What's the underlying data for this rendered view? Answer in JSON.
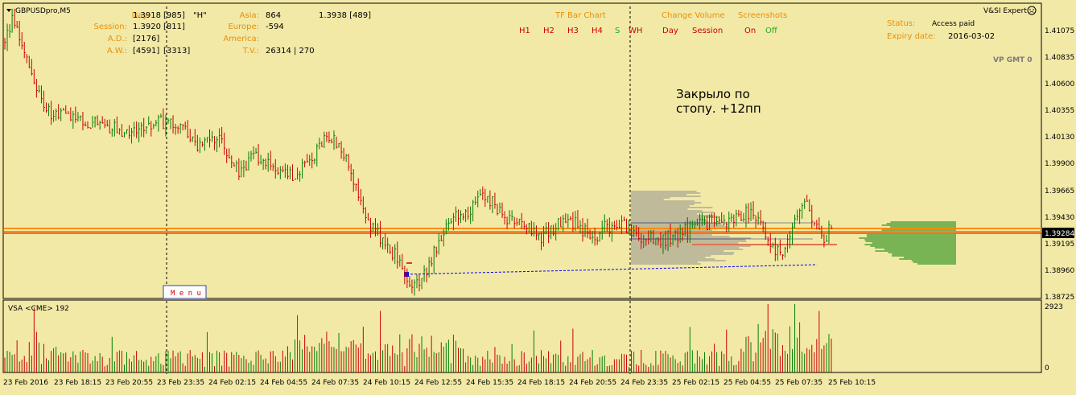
{
  "symbol": "GBPUSDpro,M5",
  "menu_label": "M e n u",
  "annotation": {
    "line1": "Закрыло по",
    "line2": "стопу.  +12пп"
  },
  "expert": {
    "label": "V&SI Expert",
    "vp_label": "VP GMT 0"
  },
  "status": {
    "status_label": "Status:",
    "status_value": "Access paid",
    "expiry_label": "Expiry date:",
    "expiry_value": "2016-03-02"
  },
  "info_panel": {
    "day_label": "Day:",
    "day_value": "1.3918",
    "day_volume": "[985]",
    "day_flag": "\"H\"",
    "session_label": "Session:",
    "session_value": "1.3920",
    "session_volume": "[811]",
    "ad_label": "A.D.:",
    "ad_value": "[2176]",
    "aw_label": "A.W.:",
    "aw_value": "[4591]",
    "aw_value2": "[3313]",
    "asia_label": "Asia:",
    "asia_value": "864",
    "asia_price": "1.3938 [489]",
    "europe_label": "Europe:",
    "europe_value": "-594",
    "america_label": "America:",
    "tv_label": "T.V.:",
    "tv_value": "26314 | 270"
  },
  "tf_bar_chart": {
    "title": "TF Bar Chart",
    "buttons": [
      "H1",
      "H2",
      "H3",
      "H4",
      "S",
      "WH"
    ]
  },
  "change_volume": {
    "title": "Change Volume",
    "buttons": [
      "Day",
      "Session"
    ]
  },
  "screenshots": {
    "title": "Screenshots",
    "on": "On",
    "off": "Off"
  },
  "price_axis": {
    "ticks": [
      "1.41075",
      "1.40835",
      "1.40600",
      "1.40355",
      "1.40130",
      "1.39900",
      "1.39665",
      "1.39430",
      "1.39195",
      "1.38960",
      "1.38725"
    ],
    "current_price": "1.39284"
  },
  "indicator": {
    "title": "VSA <CME> 192",
    "axis_max": "2923",
    "axis_min": "0"
  },
  "time_axis": {
    "labels": [
      "23 Feb 2016",
      "23 Feb 18:15",
      "23 Feb 20:55",
      "23 Feb 23:35",
      "24 Feb 02:15",
      "24 Feb 04:55",
      "24 Feb 07:35",
      "24 Feb 10:15",
      "24 Feb 12:55",
      "24 Feb 15:35",
      "24 Feb 18:15",
      "24 Feb 20:55",
      "24 Feb 23:35",
      "25 Feb 02:15",
      "25 Feb 04:55",
      "25 Feb 07:35",
      "25 Feb 10:15"
    ]
  },
  "colors": {
    "background": "#f2e9a7",
    "bull": "#008000",
    "bear": "#cc0000",
    "orange_line": "#ff8c00",
    "label_orange": "#e8900a",
    "profile_gray": "#8c8c8c",
    "profile_green": "#008000"
  },
  "chart_data": {
    "type": "candlestick",
    "symbol": "GBPUSDpro",
    "timeframe": "M5",
    "price_range": [
      1.3866,
      1.4125
    ],
    "closes": [
      1.4095,
      1.4112,
      1.4088,
      1.4065,
      1.4045,
      1.4035,
      1.4025,
      1.4028,
      1.4024,
      1.402,
      1.4022,
      1.4018,
      1.4015,
      1.4016,
      1.4013,
      1.4012,
      1.4015,
      1.4018,
      1.4022,
      1.402,
      1.4021,
      1.4017,
      1.4012,
      1.3998,
      1.4005,
      1.4008,
      1.4002,
      1.3988,
      1.3975,
      1.3985,
      1.3992,
      1.3985,
      1.3982,
      1.3978,
      1.3972,
      1.3975,
      1.3985,
      1.399,
      1.4005,
      1.401,
      1.3998,
      1.3985,
      1.3965,
      1.3945,
      1.3925,
      1.3918,
      1.3908,
      1.39,
      1.3885,
      1.3875,
      1.388,
      1.3898,
      1.3915,
      1.393,
      1.394,
      1.3935,
      1.3945,
      1.3953,
      1.3952,
      1.3945,
      1.3935,
      1.3932,
      1.393,
      1.3925,
      1.3918,
      1.3922,
      1.3928,
      1.3935,
      1.3932,
      1.3925,
      1.3922,
      1.392,
      1.3928,
      1.3925,
      1.393,
      1.3925,
      1.392,
      1.3918,
      1.3915,
      1.3916,
      1.392,
      1.3922,
      1.3925,
      1.3928,
      1.393,
      1.3932,
      1.3928,
      1.3935,
      1.3938,
      1.394,
      1.3932,
      1.3925,
      1.391,
      1.3905,
      1.392,
      1.394,
      1.3955,
      1.393,
      1.3915,
      1.3928
    ],
    "current_price": 1.39284,
    "volume_max": 2923,
    "volume_min": 0
  }
}
